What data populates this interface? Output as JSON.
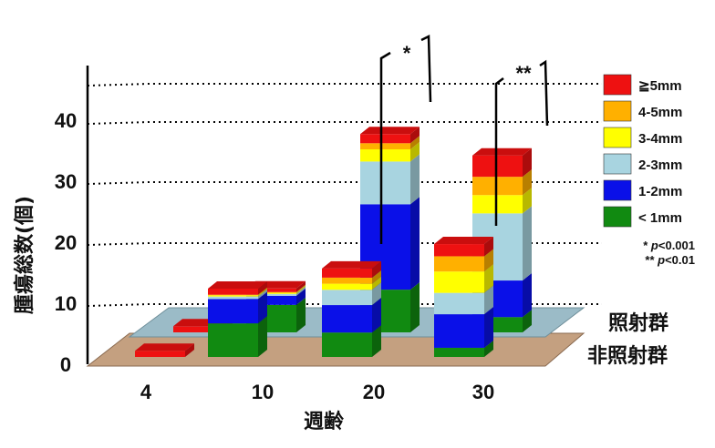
{
  "chart_data": {
    "type": "bar",
    "ylabel": "腫瘍総数(個)",
    "xlabel": "週齢",
    "categories": [
      "4",
      "10",
      "20",
      "30"
    ],
    "ylim": [
      0,
      40
    ],
    "yticks": [
      0,
      10,
      20,
      30,
      40
    ],
    "groups": [
      {
        "name": "照射群",
        "color": "#1f4e9c",
        "series": [
          {
            "name": "< 1mm",
            "values": [
              0,
              4.5,
              7,
              2.5
            ]
          },
          {
            "name": "1-2mm",
            "values": [
              0,
              1.5,
              14,
              6
            ]
          },
          {
            "name": "2-3mm",
            "values": [
              0,
              0.3,
              7,
              11
            ]
          },
          {
            "name": "3-4mm",
            "values": [
              0,
              0.2,
              2,
              3
            ]
          },
          {
            "name": "4-5mm",
            "values": [
              0,
              0.1,
              1,
              3
            ]
          },
          {
            "name": "≧5mm",
            "values": [
              1,
              0.6,
              1.5,
              3.5
            ]
          }
        ]
      },
      {
        "name": "非照射群",
        "color": "#c4a080",
        "series": [
          {
            "name": "< 1mm",
            "values": [
              0,
              5.5,
              4,
              1.5
            ]
          },
          {
            "name": "1-2mm",
            "values": [
              0,
              4,
              4.5,
              5.5
            ]
          },
          {
            "name": "2-3mm",
            "values": [
              0,
              0.4,
              2.5,
              3.5
            ]
          },
          {
            "name": "3-4mm",
            "values": [
              0,
              0.2,
              1,
              3.5
            ]
          },
          {
            "name": "4-5mm",
            "values": [
              0,
              0.1,
              1,
              2.5
            ]
          },
          {
            "name": "≧5mm",
            "values": [
              1,
              1,
              1.5,
              2
            ]
          }
        ]
      }
    ],
    "legend": {
      "placement": "right",
      "items": [
        {
          "label": "≧5mm",
          "color": "#ee1111"
        },
        {
          "label": "4-5mm",
          "color": "#ffb000"
        },
        {
          "label": "3-4mm",
          "color": "#ffff00"
        },
        {
          "label": "2-3mm",
          "color": "#a8d4e0"
        },
        {
          "label": "1-2mm",
          "color": "#0a10e8"
        },
        {
          "label": "< 1mm",
          "color": "#118a11"
        }
      ]
    },
    "significance": {
      "markers": [
        {
          "category": "20",
          "mark": "*"
        },
        {
          "category": "30",
          "mark": "**"
        }
      ],
      "notes": [
        {
          "stars": "*",
          "p_prefix": "p",
          "p_rest": "<0.001"
        },
        {
          "stars": "**",
          "p_prefix": "p",
          "p_rest": "<0.01"
        }
      ]
    },
    "grid": "dotted"
  }
}
